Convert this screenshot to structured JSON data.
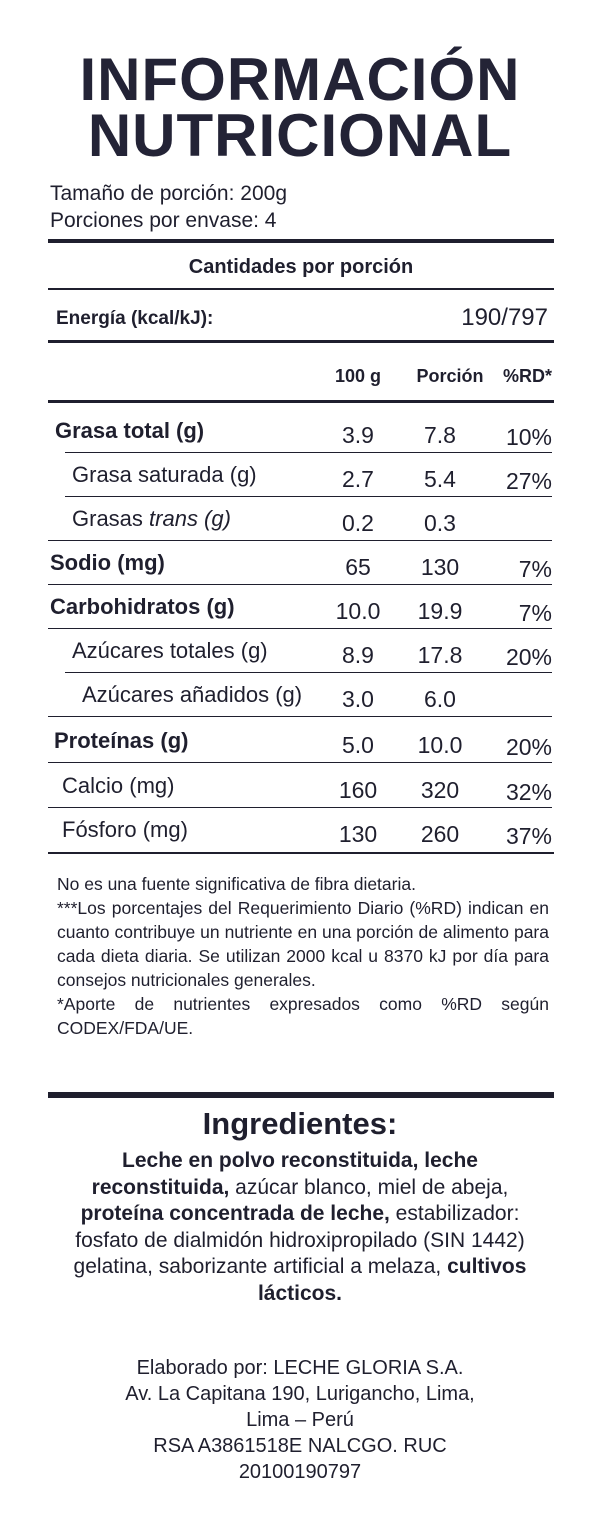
{
  "title": {
    "line1": "INFORMACIÓN",
    "line2": "NUTRICIONAL"
  },
  "serving": {
    "size": "Tamaño de porción: 200g",
    "per_container": "Porciones por envase: 4"
  },
  "amounts_header": "Cantidades por porción",
  "energy": {
    "label": "Energía (kcal/kJ):",
    "value": "190/797"
  },
  "columns": {
    "per100": "100 g",
    "portion": "Porción",
    "rd": "%RD*"
  },
  "rows": [
    {
      "name": "Grasa total (g)",
      "v100": "3.9",
      "portion": "7.8",
      "rd": "10%"
    },
    {
      "name": "Grasa saturada (g)",
      "v100": "2.7",
      "portion": "5.4",
      "rd": "27%"
    },
    {
      "name_pre": "Grasas ",
      "name_italic": "trans (g)",
      "v100": "0.2",
      "portion": "0.3",
      "rd": ""
    },
    {
      "name": "Sodio (mg)",
      "v100": "65",
      "portion": "130",
      "rd": "7%"
    },
    {
      "name": "Carbohidratos (g)",
      "v100": "10.0",
      "portion": "19.9",
      "rd": "7%"
    },
    {
      "name": "Azúcares totales (g)",
      "v100": "8.9",
      "portion": "17.8",
      "rd": "20%"
    },
    {
      "name": "Azúcares añadidos (g)",
      "v100": "3.0",
      "portion": "6.0",
      "rd": ""
    },
    {
      "name": "Proteínas (g)",
      "v100": "5.0",
      "portion": "10.0",
      "rd": "20%"
    },
    {
      "name": "Calcio (mg)",
      "v100": "160",
      "portion": "320",
      "rd": "32%"
    },
    {
      "name": "Fósforo (mg)",
      "v100": "130",
      "portion": "260",
      "rd": "37%"
    }
  ],
  "notes": {
    "fiber": "No es una fuente significativa de fibra dietaria.",
    "rd_explanation": "***Los porcentajes del Requerimiento Diario (%RD) indican en cuanto contribuye un nutriente en una porción de alimento para cada dieta diaria. Se utilizan 2000 kcal u 8370 kJ por día para consejos nutricionales generales.",
    "codex": "*Aporte de nutrientes expresados como %RD según CODEX/FDA/UE."
  },
  "ingredients": {
    "title": "Ingredientes:",
    "part1_bold": "Leche en polvo reconstituida, leche reconstituida,",
    "part2": " azúcar blanco, miel de abeja, ",
    "part3_bold": "proteína concentrada de leche,",
    "part4": " estabilizador: fosfato de dialmidón hidroxipropilado (SIN 1442) gelatina, saborizante artificial a melaza, ",
    "part5_bold": "cultivos lácticos."
  },
  "maker": {
    "line1": "Elaborado por: LECHE GLORIA S.A.",
    "line2": "Av. La Capitana 190, Lurigancho, Lima,",
    "line3": "Lima – Perú",
    "line4": "RSA A3861518E NALCGO. RUC",
    "line5": "20100190797"
  }
}
